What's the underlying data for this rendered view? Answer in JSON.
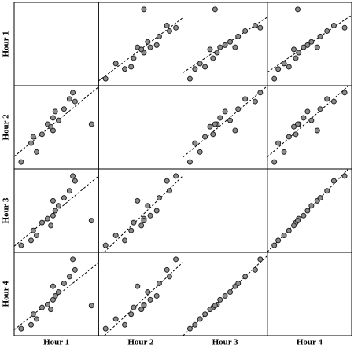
{
  "chart_data": {
    "type": "scatter-matrix",
    "variables": [
      {
        "name": "Hour 1",
        "values": [
          2.1,
          3.0,
          3.5,
          3.2,
          4.0,
          4.5,
          5.0,
          5.2,
          5.5,
          5.0,
          6.0,
          6.5,
          7.0,
          6.8,
          8.5,
          4.8
        ]
      },
      {
        "name": "Hour 2",
        "values": [
          2.0,
          3.5,
          2.8,
          4.0,
          4.2,
          5.0,
          5.5,
          6.0,
          5.3,
          4.5,
          6.2,
          7.0,
          6.8,
          7.5,
          5.0,
          4.8
        ]
      },
      {
        "name": "Hour 3",
        "values": [
          1.5,
          2.0,
          2.5,
          3.0,
          3.8,
          4.2,
          4.5,
          5.0,
          5.5,
          6.0,
          6.3,
          7.0,
          8.0,
          8.5,
          4.0,
          3.5
        ]
      },
      {
        "name": "Hour 4",
        "values": [
          1.8,
          2.2,
          2.8,
          3.3,
          4.0,
          4.3,
          4.8,
          5.2,
          5.6,
          6.2,
          6.5,
          7.2,
          7.9,
          9.0,
          4.2,
          3.8
        ]
      }
    ],
    "marker_color": "#8c8c8c",
    "fit_line": true
  }
}
